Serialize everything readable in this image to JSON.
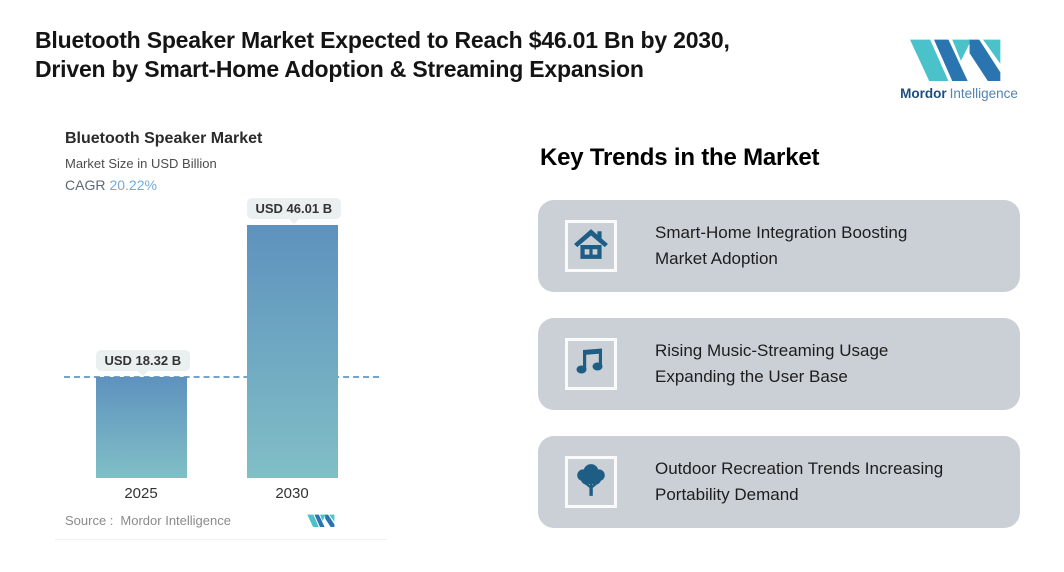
{
  "header": {
    "title_lines": [
      "Bluetooth Speaker Market Expected to Reach $46.01 Bn by 2030,",
      "Driven by Smart-Home Adoption & Streaming Expansion"
    ],
    "brand": {
      "name_bold": "Mordor",
      "name_regular": "Intelligence"
    }
  },
  "chart_card": {
    "title": "Bluetooth Speaker Market",
    "subtitle": "Market Size in USD Billion",
    "cagr_label": "CAGR",
    "cagr_value": "20.22%",
    "source_label": "Source :",
    "source_value": "Mordor Intelligence"
  },
  "chart_data": {
    "type": "bar",
    "title": "Bluetooth Speaker Market",
    "ylabel": "Market Size in USD Billion",
    "unit": "USD Billion",
    "cagr_percent": 20.22,
    "categories": [
      "2025",
      "2030"
    ],
    "values": [
      18.32,
      46.01
    ],
    "value_labels": [
      "USD 18.32 B",
      "USD 46.01 B"
    ],
    "ylim": [
      0,
      46.01
    ],
    "dashed_reference_line": 18.32,
    "grid": false,
    "legend": false,
    "bar_gradient_top": "#5E92BE",
    "bar_gradient_bottom": "#80BFC6"
  },
  "key_trends": {
    "heading": "Key Trends in the Market",
    "cards": [
      {
        "icon": "house-icon",
        "line1": "Smart-Home Integration Boosting",
        "line2": "Market Adoption"
      },
      {
        "icon": "music-note-icon",
        "line1": "Rising Music-Streaming Usage",
        "line2": "Expanding the User Base"
      },
      {
        "icon": "tree-icon",
        "line1": "Outdoor Recreation Trends Increasing",
        "line2": "Portability Demand"
      }
    ]
  },
  "colors": {
    "accent_teal": "#4BC1C9",
    "accent_blue": "#2A74B0",
    "icon_blue": "#1E5E85",
    "trend_card_gray": "#CBD0D7",
    "cagr_blue": "#75AAD8",
    "dashed_line": "#75A4CA",
    "badge_bg": "#E9F0EF"
  }
}
